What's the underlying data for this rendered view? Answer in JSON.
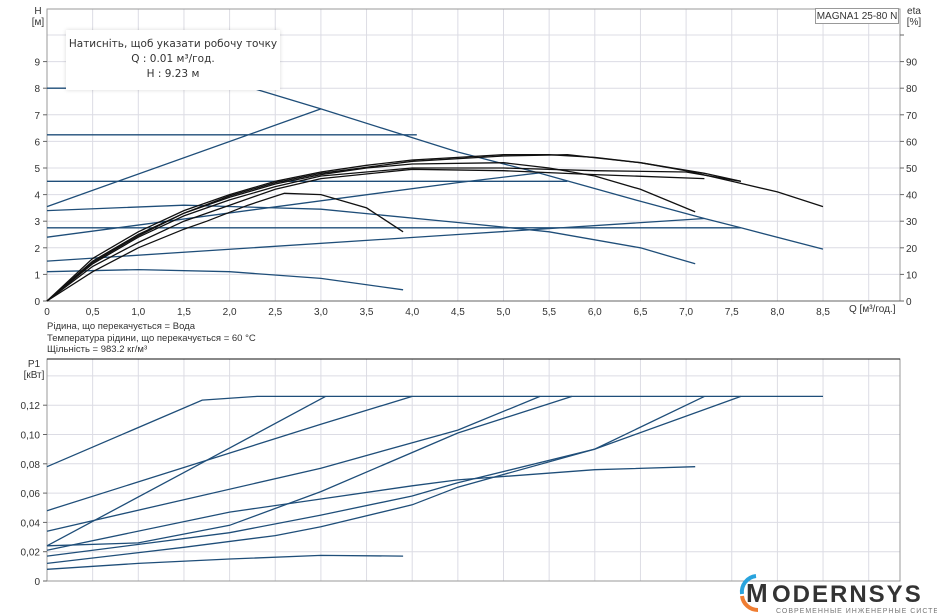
{
  "tooltip": {
    "line1": "Натисніть, щоб указати робочу точку",
    "line2": "Q : 0.01 м³/год.",
    "line3": "H : 9.23 м"
  },
  "model_label": "MAGNA1 25-80 N",
  "fluid": [
    "Рідина, що перекачується = Вода",
    "Температура рідини, що перекачується = 60 °C",
    "Щільність = 983.2 кг/м³"
  ],
  "logo": {
    "name": "MODERNSYS",
    "tagline": "СОВРЕМЕННЫЕ ИНЖЕНЕРНЫЕ СИСТЕМЫ",
    "colors": [
      "#29a3dd",
      "#ef7d32"
    ]
  },
  "colors": {
    "system_line": "#1f4e79",
    "eff_curve": "#111111",
    "grid": "#dcdce4"
  },
  "chart_data": [
    {
      "type": "line",
      "name": "head-efficiency",
      "xlabel": "Q [м³/год.]",
      "ylabel": "H [м]",
      "y2label": "eta [%]",
      "xlim": [
        0,
        9.5
      ],
      "ylim": [
        0,
        10.3
      ],
      "y2lim": [
        0,
        103
      ],
      "grid": true,
      "xticks": [
        "0",
        "0,5",
        "1,0",
        "1,5",
        "2,0",
        "2,5",
        "3,0",
        "3,5",
        "4,0",
        "4,5",
        "5,0",
        "5,5",
        "6,0",
        "6,5",
        "7,0",
        "7,5",
        "8,0",
        "8,5"
      ],
      "yticks": [
        "0",
        "1",
        "2",
        "3",
        "4",
        "5",
        "6",
        "7",
        "8",
        "9"
      ],
      "y2ticks": [
        "0",
        "10",
        "20",
        "30",
        "40",
        "50",
        "60",
        "70",
        "80",
        "90"
      ],
      "head_lines": [
        [
          [
            0,
            8
          ],
          [
            2.25,
            8
          ],
          [
            3.0,
            7.22
          ],
          [
            4.5,
            5.6
          ],
          [
            5.4,
            4.8
          ],
          [
            6.5,
            3.75
          ],
          [
            7.2,
            3.1
          ],
          [
            7.6,
            2.75
          ],
          [
            8.5,
            1.95
          ]
        ],
        [
          [
            0,
            3.55
          ],
          [
            3.0,
            7.22
          ]
        ],
        [
          [
            0,
            6.25
          ],
          [
            4.05,
            6.25
          ]
        ],
        [
          [
            0,
            4.5
          ],
          [
            5.7,
            4.5
          ]
        ],
        [
          [
            0,
            2.4
          ],
          [
            4.5,
            4.45
          ],
          [
            5.4,
            4.82
          ]
        ],
        [
          [
            0,
            3.4
          ],
          [
            1.5,
            3.6
          ],
          [
            3.0,
            3.45
          ],
          [
            4.5,
            2.95
          ],
          [
            5.5,
            2.6
          ],
          [
            6.5,
            2.0
          ],
          [
            7.1,
            1.4
          ]
        ],
        [
          [
            0,
            2.75
          ],
          [
            7.6,
            2.75
          ]
        ],
        [
          [
            0,
            1.5
          ],
          [
            4.5,
            2.5
          ],
          [
            7.2,
            3.1
          ]
        ],
        [
          [
            0,
            1.1
          ],
          [
            1.0,
            1.18
          ],
          [
            2.0,
            1.1
          ],
          [
            3.0,
            0.85
          ],
          [
            3.9,
            0.42
          ]
        ]
      ],
      "efficiency_curves": [
        [
          [
            0,
            0
          ],
          [
            0.5,
            16
          ],
          [
            1,
            26
          ],
          [
            1.5,
            34
          ],
          [
            2,
            40
          ],
          [
            2.5,
            45
          ],
          [
            3,
            48.5
          ],
          [
            3.5,
            51
          ],
          [
            4,
            53
          ],
          [
            4.5,
            54
          ],
          [
            5,
            55
          ],
          [
            5.5,
            55
          ],
          [
            6,
            54
          ],
          [
            6.5,
            52
          ],
          [
            7,
            49
          ],
          [
            7.5,
            45
          ],
          [
            8,
            41
          ],
          [
            8.5,
            35.5
          ]
        ],
        [
          [
            0,
            0
          ],
          [
            0.5,
            15
          ],
          [
            1,
            25
          ],
          [
            1.5,
            33
          ],
          [
            2,
            39
          ],
          [
            2.5,
            44
          ],
          [
            3,
            47.5
          ],
          [
            3.5,
            50
          ],
          [
            4,
            51.5
          ],
          [
            5,
            52
          ],
          [
            5.5,
            50
          ],
          [
            6,
            47
          ],
          [
            6.5,
            42
          ],
          [
            7.1,
            33.5
          ]
        ],
        [
          [
            0,
            0
          ],
          [
            0.5,
            14
          ],
          [
            1,
            24
          ],
          [
            1.5,
            32
          ],
          [
            2,
            38
          ],
          [
            2.5,
            43
          ],
          [
            3,
            47
          ],
          [
            4,
            50
          ],
          [
            5,
            50
          ],
          [
            6,
            49
          ],
          [
            7,
            48.5
          ],
          [
            7.6,
            45
          ]
        ],
        [
          [
            0,
            0
          ],
          [
            0.5,
            13
          ],
          [
            1,
            22
          ],
          [
            1.5,
            30
          ],
          [
            2,
            36
          ],
          [
            2.5,
            42
          ],
          [
            3,
            46
          ],
          [
            4,
            49.5
          ],
          [
            5,
            49
          ],
          [
            6,
            47.5
          ],
          [
            7.2,
            46
          ]
        ],
        [
          [
            0,
            0
          ],
          [
            0.5,
            11
          ],
          [
            1,
            20
          ],
          [
            1.5,
            27
          ],
          [
            1.75,
            30
          ],
          [
            2.2,
            36
          ],
          [
            2.6,
            40.5
          ],
          [
            3,
            40
          ],
          [
            3.5,
            35
          ],
          [
            3.9,
            26
          ]
        ],
        [
          [
            0,
            0
          ],
          [
            0.5,
            14.5
          ],
          [
            1,
            24.5
          ],
          [
            1.5,
            33
          ],
          [
            2,
            39.5
          ],
          [
            2.5,
            44.5
          ],
          [
            3,
            48
          ],
          [
            4,
            52.5
          ],
          [
            5,
            54.5
          ],
          [
            5.7,
            55
          ],
          [
            6.5,
            52
          ],
          [
            7.2,
            48
          ],
          [
            7.6,
            45
          ]
        ]
      ]
    },
    {
      "type": "line",
      "name": "power",
      "ylabel": "P1 [кВт]",
      "xlim": [
        0,
        9.5
      ],
      "ylim": [
        0,
        0.151
      ],
      "grid": true,
      "yticks": [
        "0",
        "0,02",
        "0,04",
        "0,06",
        "0,08",
        "0,10",
        "0,12"
      ],
      "series": [
        [
          [
            0,
            0.078
          ],
          [
            1.7,
            0.1235
          ],
          [
            2.3,
            0.126
          ],
          [
            8.5,
            0.126
          ]
        ],
        [
          [
            0,
            0.048
          ],
          [
            3,
            0.107
          ],
          [
            4,
            0.126
          ]
        ],
        [
          [
            0,
            0.024
          ],
          [
            1.5,
            0.074
          ],
          [
            3.05,
            0.126
          ]
        ],
        [
          [
            0,
            0.034
          ],
          [
            3,
            0.077
          ],
          [
            4.5,
            0.103
          ],
          [
            5.4,
            0.126
          ]
        ],
        [
          [
            0,
            0.024
          ],
          [
            1,
            0.026
          ],
          [
            2,
            0.038
          ],
          [
            3,
            0.061
          ],
          [
            4.5,
            0.101
          ],
          [
            5.75,
            0.126
          ]
        ],
        [
          [
            0,
            0.021
          ],
          [
            2,
            0.047
          ],
          [
            3,
            0.056
          ],
          [
            4,
            0.065
          ],
          [
            4.5,
            0.069
          ],
          [
            6,
            0.076
          ],
          [
            7.1,
            0.078
          ]
        ],
        [
          [
            0,
            0.017
          ],
          [
            2,
            0.033
          ],
          [
            3,
            0.045
          ],
          [
            4,
            0.058
          ],
          [
            4.5,
            0.067
          ],
          [
            6,
            0.09
          ],
          [
            7.2,
            0.126
          ]
        ],
        [
          [
            0,
            0.012
          ],
          [
            1.5,
            0.023
          ],
          [
            2.5,
            0.031
          ],
          [
            3,
            0.037
          ],
          [
            4,
            0.052
          ],
          [
            4.5,
            0.064
          ],
          [
            6,
            0.09
          ],
          [
            7.6,
            0.126
          ]
        ],
        [
          [
            0,
            0.008
          ],
          [
            1,
            0.012
          ],
          [
            2,
            0.015
          ],
          [
            3,
            0.0175
          ],
          [
            3.9,
            0.017
          ]
        ]
      ]
    }
  ]
}
